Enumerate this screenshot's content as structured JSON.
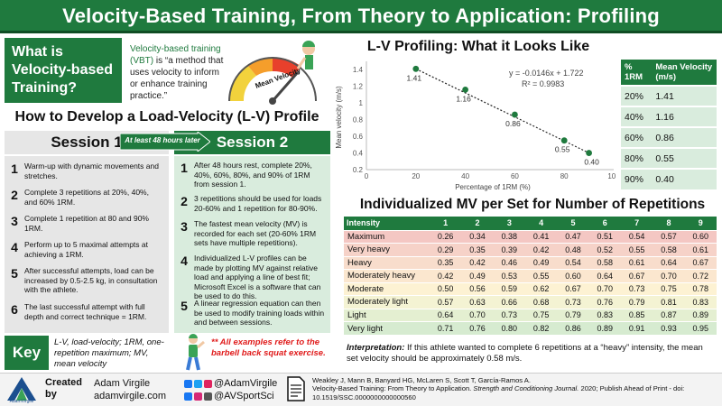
{
  "title": "Velocity-Based Training, From Theory to Application: Profiling",
  "what": {
    "lines": [
      "What is",
      "Velocity-based",
      "Training?"
    ],
    "definition_highlight": "Velocity-based training (VBT)",
    "definition_rest": " is “a method that uses velocity to inform or enhance training practice.”",
    "gauge_label": "Mean Velocity"
  },
  "how_title": "How to Develop a Load-Velocity (L-V) Profile",
  "session1": {
    "label": "Session 1",
    "steps": [
      {
        "num": "1",
        "text": "Warm-up with dynamic movements and stretches."
      },
      {
        "num": "2",
        "text": "Complete 3 repetitions at 20%, 40%, and 60% 1RM."
      },
      {
        "num": "3",
        "text": "Complete 1 repetition at 80 and 90% 1RM."
      },
      {
        "num": "4",
        "text": "Perform up to 5 maximal attempts at achieving a 1RM."
      },
      {
        "num": "5",
        "text": "After successful attempts, load can be increased by 0.5-2.5 kg, in consultation with the athlete."
      },
      {
        "num": "6",
        "text": "The last successful attempt with full depth and correct technique = 1RM."
      }
    ]
  },
  "arrow_text": "At least 48 hours later",
  "session2": {
    "label": "Session 2",
    "steps": [
      {
        "num": "1",
        "text": "After 48 hours rest, complete 20%, 40%, 60%, 80%, and 90% of 1RM from session 1."
      },
      {
        "num": "2",
        "text": "3 repetitions should be used for loads 20-60% and 1 repetition for 80-90%."
      },
      {
        "num": "3",
        "text": "The fastest mean velocity (MV) is recorded for each set (20-60% 1RM sets have multiple repetitions)."
      },
      {
        "num": "4",
        "text": "Individualized L-V profiles can be made by plotting MV against relative load and applying a line of best fit; Microsoft Excel is a software that can be used to do this."
      },
      {
        "num": "5",
        "text": "A linear regression equation can then be used to modify training loads within and between sessions."
      }
    ]
  },
  "key": {
    "label": "Key",
    "text": "L-V, load-velocity; 1RM, one-repetition maximum; MV, mean velocity",
    "note": "** All examples refer to the barbell back squat exercise."
  },
  "lv_title": "L-V Profiling: What it Looks Like",
  "chart_data": {
    "type": "scatter",
    "xlabel": "Percentage of 1RM (%)",
    "ylabel": "Mean velocity (m/s)",
    "xlim": [
      0,
      100
    ],
    "ylim": [
      0.2,
      1.5
    ],
    "xticks": [
      0,
      20,
      40,
      60,
      80,
      100
    ],
    "yticks": [
      0.2,
      0.4,
      0.6,
      0.8,
      1.0,
      1.2,
      1.4
    ],
    "ytick_labels": [
      "0.2",
      "0.4",
      "0.6",
      "0.8",
      "1",
      "1.2",
      "1.4"
    ],
    "x": [
      20,
      40,
      60,
      80,
      90
    ],
    "y": [
      1.41,
      1.16,
      0.86,
      0.55,
      0.4
    ],
    "point_labels": [
      "1.41",
      "1.16",
      "0.86",
      "0.55",
      "0.40"
    ],
    "trendline": "dotted",
    "equation": "y = -0.0146x + 1.722",
    "r2": "R² = 0.9983",
    "grid": false
  },
  "pct_table": {
    "headers": [
      "% 1RM",
      "Mean Velocity (m/s)"
    ],
    "rows": [
      [
        "20%",
        "1.41"
      ],
      [
        "40%",
        "1.16"
      ],
      [
        "60%",
        "0.86"
      ],
      [
        "80%",
        "0.55"
      ],
      [
        "90%",
        "0.40"
      ]
    ]
  },
  "mv_title": "Individualized MV per Set for Number of Repetitions",
  "mv_table": {
    "headers": [
      "Intensity",
      "1",
      "2",
      "3",
      "4",
      "5",
      "6",
      "7",
      "8",
      "9"
    ],
    "rows": [
      {
        "label": "Maximum",
        "values": [
          "0.26",
          "0.34",
          "0.38",
          "0.41",
          "0.47",
          "0.51",
          "0.54",
          "0.57",
          "0.60"
        ],
        "color": "#f4c7c3"
      },
      {
        "label": "Very heavy",
        "values": [
          "0.29",
          "0.35",
          "0.39",
          "0.42",
          "0.48",
          "0.52",
          "0.55",
          "0.58",
          "0.61"
        ],
        "color": "#f6d2c8"
      },
      {
        "label": "Heavy",
        "values": [
          "0.35",
          "0.42",
          "0.46",
          "0.49",
          "0.54",
          "0.58",
          "0.61",
          "0.64",
          "0.67"
        ],
        "color": "#f8ddcc"
      },
      {
        "label": "Moderately heavy",
        "values": [
          "0.42",
          "0.49",
          "0.53",
          "0.55",
          "0.60",
          "0.64",
          "0.67",
          "0.70",
          "0.72"
        ],
        "color": "#fbe7cf"
      },
      {
        "label": "Moderate",
        "values": [
          "0.50",
          "0.56",
          "0.59",
          "0.62",
          "0.67",
          "0.70",
          "0.73",
          "0.75",
          "0.78"
        ],
        "color": "#fdf2d3"
      },
      {
        "label": "Moderately light",
        "values": [
          "0.57",
          "0.63",
          "0.66",
          "0.68",
          "0.73",
          "0.76",
          "0.79",
          "0.81",
          "0.83"
        ],
        "color": "#f4f3d3"
      },
      {
        "label": "Light",
        "values": [
          "0.64",
          "0.70",
          "0.73",
          "0.75",
          "0.79",
          "0.83",
          "0.85",
          "0.87",
          "0.89"
        ],
        "color": "#e4efd1"
      },
      {
        "label": "Very light",
        "values": [
          "0.71",
          "0.76",
          "0.80",
          "0.82",
          "0.86",
          "0.89",
          "0.91",
          "0.93",
          "0.95"
        ],
        "color": "#d6ebd0"
      }
    ]
  },
  "interpretation": {
    "label": "Interpretation:",
    "text": " If this athlete wanted to complete 6 repetitions at a “heavy” intensity, the mean set velocity should be approximately 0.58 m/s."
  },
  "footer": {
    "logo_text": "AdamVirgile",
    "created": "Created by",
    "name": "Adam Virgile",
    "site": "adamvirgile.com",
    "twitter": "@AdamVirgile",
    "instagram": "@AVSportSci",
    "citation_authors": "Weakley J, Mann B, Banyard HG, McLaren S, Scott T, García-Ramos A.",
    "citation_title": "Velocity-Based Training: From Theory to Application. ",
    "citation_journal": "Strength and Conditioning Journal.",
    "citation_rest": " 2020; Publish Ahead of Print - doi: 10.1519/SSC.0000000000000560"
  },
  "colors": {
    "accent": "#1f7a3e",
    "light_green": "#d9ecdd",
    "note_red": "#e01b1b"
  }
}
